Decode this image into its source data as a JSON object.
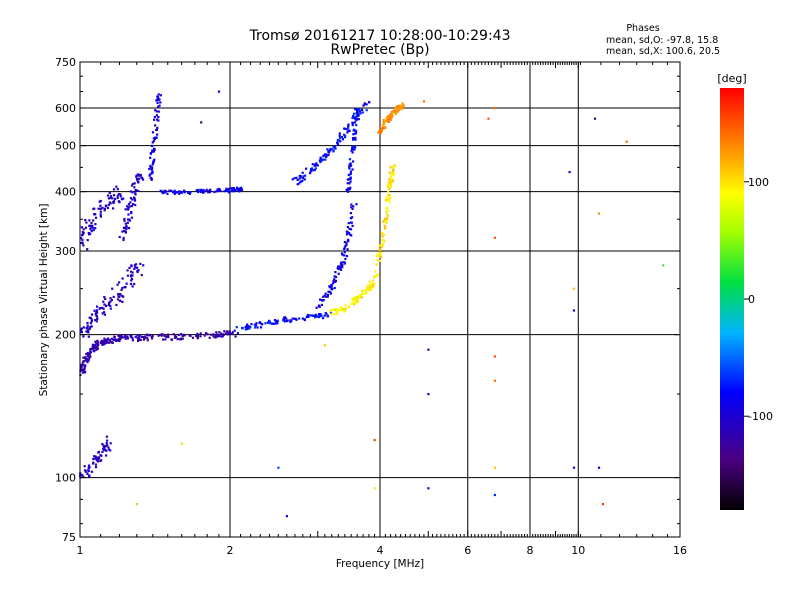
{
  "chart_data": {
    "type": "scatter",
    "title": "Tromsø 20161217 10:28:00-10:29:43",
    "subtitle": "RwPretec (Bp)",
    "xlabel": "Frequency [MHz]",
    "ylabel": "Stationary phase Virtual Height [km]",
    "x_scale": "log",
    "y_scale": "log",
    "xlim": [
      1,
      16
    ],
    "ylim": [
      75,
      750
    ],
    "grid": true,
    "x_ticks": [
      "1",
      "2",
      "4",
      "6",
      "8",
      "10",
      "16"
    ],
    "x_gridlines": [
      2,
      4,
      6,
      8,
      10
    ],
    "y_ticks": [
      "75",
      "100",
      "200",
      "300",
      "400",
      "500",
      "600",
      "750"
    ],
    "y_gridlines": [
      100,
      200,
      300,
      400,
      500,
      600
    ],
    "phase_box": {
      "title": "Phases",
      "line1": "mean, sd,O: -97.8, 15.8",
      "line2": "mean, sd,X: 100.6, 20.5"
    },
    "colorbar": {
      "label": "[deg]",
      "range": [
        -180,
        180
      ],
      "ticks": [
        "100",
        "0",
        "-100"
      ]
    },
    "series": [
      {
        "segments": [
          {
            "x": [
              1.0,
              1.02,
              1.05,
              1.08,
              1.12,
              1.18,
              1.25,
              1.35,
              1.5,
              1.7,
              1.9,
              2.05
            ],
            "y": [
              162,
              175,
              185,
              190,
              194,
              196,
              197,
              197,
              198,
              199,
              200,
              201
            ],
            "phase": -120,
            "spread": 0.03
          },
          {
            "x": [
              1.0,
              1.05,
              1.1,
              1.18,
              1.25,
              1.32
            ],
            "y": [
              200,
              210,
              225,
              240,
              260,
              280
            ],
            "phase": -110,
            "spread": 0.06
          },
          {
            "x": [
              1.0,
              1.03,
              1.08,
              1.15,
              1.2
            ],
            "y": [
              300,
              330,
              360,
              380,
              400
            ],
            "phase": -105,
            "spread": 0.06
          },
          {
            "x": [
              1.22,
              1.25,
              1.28,
              1.32
            ],
            "y": [
              320,
              360,
              400,
              440
            ],
            "phase": -105,
            "spread": 0.04
          },
          {
            "x": [
              1.38,
              1.4,
              1.42,
              1.44
            ],
            "y": [
              420,
              480,
              560,
              640
            ],
            "phase": -95,
            "spread": 0.02
          },
          {
            "x": [
              1.45,
              1.6,
              1.8,
              2.0,
              2.1
            ],
            "y": [
              398,
              399,
              400,
              403,
              405
            ],
            "phase": -90,
            "spread": 0.02
          },
          {
            "x": [
              2.05,
              2.3,
              2.6,
              2.9,
              3.2
            ],
            "y": [
              205,
              210,
              215,
              218,
              220
            ],
            "phase": -80,
            "spread": 0.025
          },
          {
            "x": [
              2.7,
              2.9,
              3.1,
              3.3,
              3.5,
              3.8
            ],
            "y": [
              420,
              445,
              475,
              510,
              560,
              620
            ],
            "phase": -80,
            "spread": 0.03
          },
          {
            "x": [
              3.0,
              3.2,
              3.35,
              3.45,
              3.55
            ],
            "y": [
              230,
              250,
              280,
              320,
              380
            ],
            "phase": -95,
            "spread": 0.025
          },
          {
            "x": [
              3.45,
              3.5,
              3.55,
              3.6
            ],
            "y": [
              400,
              450,
              520,
              610
            ],
            "phase": -85,
            "spread": 0.02
          },
          {
            "x": [
              3.2,
              3.4,
              3.6,
              3.8,
              3.95
            ],
            "y": [
              222,
              228,
              238,
              250,
              270
            ],
            "phase": 95,
            "spread": 0.025
          },
          {
            "x": [
              3.95,
              4.05,
              4.15,
              4.2,
              4.25
            ],
            "y": [
              280,
              320,
              380,
              420,
              460
            ],
            "phase": 100,
            "spread": 0.02
          },
          {
            "x": [
              4.0,
              4.1,
              4.2,
              4.35,
              4.45
            ],
            "y": [
              530,
              560,
              580,
              600,
              610
            ],
            "phase": 130,
            "spread": 0.02
          },
          {
            "x": [
              1.0,
              1.05,
              1.1,
              1.15
            ],
            "y": [
              100,
              105,
              112,
              120
            ],
            "phase": -110,
            "spread": 0.04
          }
        ]
      }
    ],
    "noise": [
      {
        "x": 5.0,
        "y": 95,
        "phase": -95
      },
      {
        "x": 5.0,
        "y": 150,
        "phase": -90
      },
      {
        "x": 5.0,
        "y": 186,
        "phase": -110
      },
      {
        "x": 6.8,
        "y": 180,
        "phase": 150
      },
      {
        "x": 6.8,
        "y": 160,
        "phase": 140
      },
      {
        "x": 6.8,
        "y": 320,
        "phase": 150
      },
      {
        "x": 6.8,
        "y": 105,
        "phase": 110
      },
      {
        "x": 6.8,
        "y": 92,
        "phase": -70
      },
      {
        "x": 9.8,
        "y": 250,
        "phase": 110
      },
      {
        "x": 9.8,
        "y": 225,
        "phase": -100
      },
      {
        "x": 9.8,
        "y": 105,
        "phase": -110
      },
      {
        "x": 11.0,
        "y": 105,
        "phase": -100
      },
      {
        "x": 11.2,
        "y": 88,
        "phase": 160
      },
      {
        "x": 11.0,
        "y": 360,
        "phase": 130
      },
      {
        "x": 12.5,
        "y": 510,
        "phase": 140
      },
      {
        "x": 14.8,
        "y": 280,
        "phase": 30
      },
      {
        "x": 9.6,
        "y": 440,
        "phase": -110
      },
      {
        "x": 3.1,
        "y": 190,
        "phase": 110
      },
      {
        "x": 2.5,
        "y": 105,
        "phase": -60
      },
      {
        "x": 1.6,
        "y": 118,
        "phase": 60
      },
      {
        "x": 1.3,
        "y": 88,
        "phase": 50
      },
      {
        "x": 3.9,
        "y": 120,
        "phase": 160
      },
      {
        "x": 3.9,
        "y": 95,
        "phase": 100
      },
      {
        "x": 2.6,
        "y": 83,
        "phase": -100
      },
      {
        "x": 1.75,
        "y": 560,
        "phase": -120
      },
      {
        "x": 1.9,
        "y": 650,
        "phase": -90
      },
      {
        "x": 6.6,
        "y": 570,
        "phase": 150
      },
      {
        "x": 6.8,
        "y": 600,
        "phase": 140
      },
      {
        "x": 10.8,
        "y": 570,
        "phase": -130
      },
      {
        "x": 4.9,
        "y": 620,
        "phase": 140
      }
    ]
  }
}
